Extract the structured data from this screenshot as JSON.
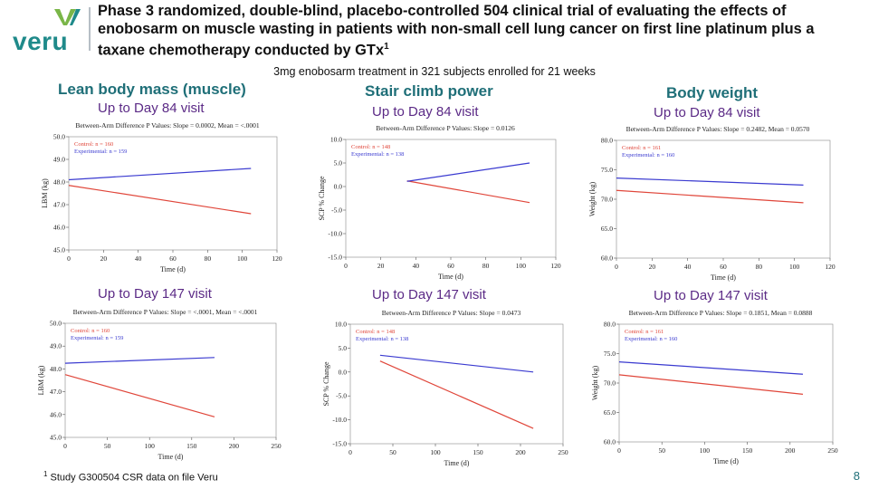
{
  "logo": {
    "text": "veru",
    "brand_color": "#1f8a8a",
    "accent_color": "#7ab648"
  },
  "header": {
    "title": "Phase 3 randomized, double-blind, placebo-controlled 504 clinical trial of evaluating the effects of enobosarm on muscle wasting in patients with non-small cell lung cancer on first line platinum plus a taxane chemotherapy conducted by GTx",
    "title_footnote_mark": "1",
    "subtitle": "3mg enobosarm treatment in 321 subjects enrolled for 21 weeks"
  },
  "columns": [
    {
      "title": "Lean body mass (muscle)"
    },
    {
      "title": "Stair climb power"
    },
    {
      "title": "Body weight"
    }
  ],
  "visits": {
    "day84": "Up to Day 84 visit",
    "day147": "Up to Day 147 visit"
  },
  "colors": {
    "control": "#e0463a",
    "experimental": "#3a3ad0",
    "axis": "#555555"
  },
  "chart_data": [
    {
      "type": "line",
      "title": "Between-Arm Difference P Values: Slope = 0.0002, Mean = <.0001",
      "xlabel": "Time (d)",
      "ylabel": "LBM (kg)",
      "xlim": [
        0,
        120
      ],
      "ylim": [
        45.0,
        50.0
      ],
      "xticks": [
        0,
        20,
        40,
        60,
        80,
        100,
        120
      ],
      "xtick_labels": [
        "0",
        "20",
        "40",
        "60",
        "80",
        "100",
        "120"
      ],
      "yticks": [
        45,
        46,
        47,
        48,
        49,
        50
      ],
      "ytick_labels": [
        "45.0",
        "46.0",
        "47.0",
        "48.0",
        "49.0",
        "50.0"
      ],
      "legend": [
        "Control: n = 160",
        "Experimental: n = 159"
      ],
      "series": [
        {
          "name": "Control",
          "x": [
            0,
            105
          ],
          "y": [
            47.85,
            46.6
          ]
        },
        {
          "name": "Experimental",
          "x": [
            0,
            105
          ],
          "y": [
            48.1,
            48.6
          ]
        }
      ]
    },
    {
      "type": "line",
      "title": "Between-Arm Difference P Values: Slope = 0.0126",
      "xlabel": "Time (d)",
      "ylabel": "SCP % Change",
      "xlim": [
        0,
        120
      ],
      "ylim": [
        -15.0,
        10.0
      ],
      "xticks": [
        0,
        20,
        40,
        60,
        80,
        100,
        120
      ],
      "xtick_labels": [
        "0",
        "20",
        "40",
        "60",
        "80",
        "100",
        "120"
      ],
      "yticks": [
        -15,
        -10,
        -5,
        0,
        5,
        10
      ],
      "ytick_labels": [
        "-15.0",
        "-10.0",
        "-5.0",
        "0.0",
        "5.0",
        "10.0"
      ],
      "legend": [
        "Control: n = 148",
        "Experimental: n = 138"
      ],
      "series": [
        {
          "name": "Control",
          "x": [
            35,
            105
          ],
          "y": [
            1.2,
            -3.4
          ]
        },
        {
          "name": "Experimental",
          "x": [
            35,
            105
          ],
          "y": [
            1.1,
            5.0
          ]
        }
      ]
    },
    {
      "type": "line",
      "title": "Between-Arm Difference P Values: Slope = 0.2482, Mean = 0.0570",
      "xlabel": "Time (d)",
      "ylabel": "Weight (kg)",
      "xlim": [
        0,
        120
      ],
      "ylim": [
        60.0,
        80.0
      ],
      "xticks": [
        0,
        20,
        40,
        60,
        80,
        100,
        120
      ],
      "xtick_labels": [
        "0",
        "20",
        "40",
        "60",
        "80",
        "100",
        "120"
      ],
      "yticks": [
        60,
        65,
        70,
        75,
        80
      ],
      "ytick_labels": [
        "60.0",
        "65.0",
        "70.0",
        "75.0",
        "80.0"
      ],
      "legend": [
        "Control: n = 161",
        "Experimental: n = 160"
      ],
      "series": [
        {
          "name": "Control",
          "x": [
            0,
            105
          ],
          "y": [
            71.5,
            69.4
          ]
        },
        {
          "name": "Experimental",
          "x": [
            0,
            105
          ],
          "y": [
            73.6,
            72.4
          ]
        }
      ]
    },
    {
      "type": "line",
      "title": "Between-Arm Difference P Values: Slope = <.0001, Mean = <.0001",
      "xlabel": "Time (d)",
      "ylabel": "LBM (kg)",
      "xlim": [
        0,
        250
      ],
      "ylim": [
        45.0,
        50.0
      ],
      "xticks": [
        0,
        50,
        100,
        150,
        200,
        250
      ],
      "xtick_labels": [
        "0",
        "50",
        "100",
        "150",
        "200",
        "250"
      ],
      "yticks": [
        45,
        46,
        47,
        48,
        49,
        50
      ],
      "ytick_labels": [
        "45.0",
        "46.0",
        "47.0",
        "48.0",
        "49.0",
        "50.0"
      ],
      "legend": [
        "Control: n = 160",
        "Experimental: n = 159"
      ],
      "series": [
        {
          "name": "Control",
          "x": [
            0,
            177
          ],
          "y": [
            47.75,
            45.9
          ]
        },
        {
          "name": "Experimental",
          "x": [
            0,
            177
          ],
          "y": [
            48.25,
            48.5
          ]
        }
      ]
    },
    {
      "type": "line",
      "title": "Between-Arm Difference P Values: Slope = 0.0473",
      "xlabel": "Time (d)",
      "ylabel": "SCP % Change",
      "xlim": [
        0,
        250
      ],
      "ylim": [
        -15.0,
        10.0
      ],
      "xticks": [
        0,
        50,
        100,
        150,
        200,
        250
      ],
      "xtick_labels": [
        "0",
        "50",
        "100",
        "150",
        "200",
        "250"
      ],
      "yticks": [
        -15,
        -10,
        -5,
        0,
        5,
        10
      ],
      "ytick_labels": [
        "-15.0",
        "-10.0",
        "-5.0",
        "0.0",
        "5.0",
        "10.0"
      ],
      "legend": [
        "Control: n = 148",
        "Experimental: n = 138"
      ],
      "series": [
        {
          "name": "Control",
          "x": [
            35,
            215
          ],
          "y": [
            2.3,
            -11.8
          ]
        },
        {
          "name": "Experimental",
          "x": [
            35,
            215
          ],
          "y": [
            3.5,
            0.0
          ]
        }
      ]
    },
    {
      "type": "line",
      "title": "Between-Arm Difference P Values: Slope = 0.1851, Mean = 0.0888",
      "xlabel": "Time (d)",
      "ylabel": "Weight (kg)",
      "xlim": [
        0,
        250
      ],
      "ylim": [
        60.0,
        80.0
      ],
      "xticks": [
        0,
        50,
        100,
        150,
        200,
        250
      ],
      "xtick_labels": [
        "0",
        "50",
        "100",
        "150",
        "200",
        "250"
      ],
      "yticks": [
        60,
        65,
        70,
        75,
        80
      ],
      "ytick_labels": [
        "60.0",
        "65.0",
        "70.0",
        "75.0",
        "80.0"
      ],
      "legend": [
        "Control: n = 161",
        "Experimental: n = 160"
      ],
      "series": [
        {
          "name": "Control",
          "x": [
            0,
            215
          ],
          "y": [
            71.4,
            68.1
          ]
        },
        {
          "name": "Experimental",
          "x": [
            0,
            215
          ],
          "y": [
            73.6,
            71.5
          ]
        }
      ]
    }
  ],
  "footnote": {
    "mark": "1",
    "text": "Study G300504 CSR data on file Veru"
  },
  "page_number": "8"
}
